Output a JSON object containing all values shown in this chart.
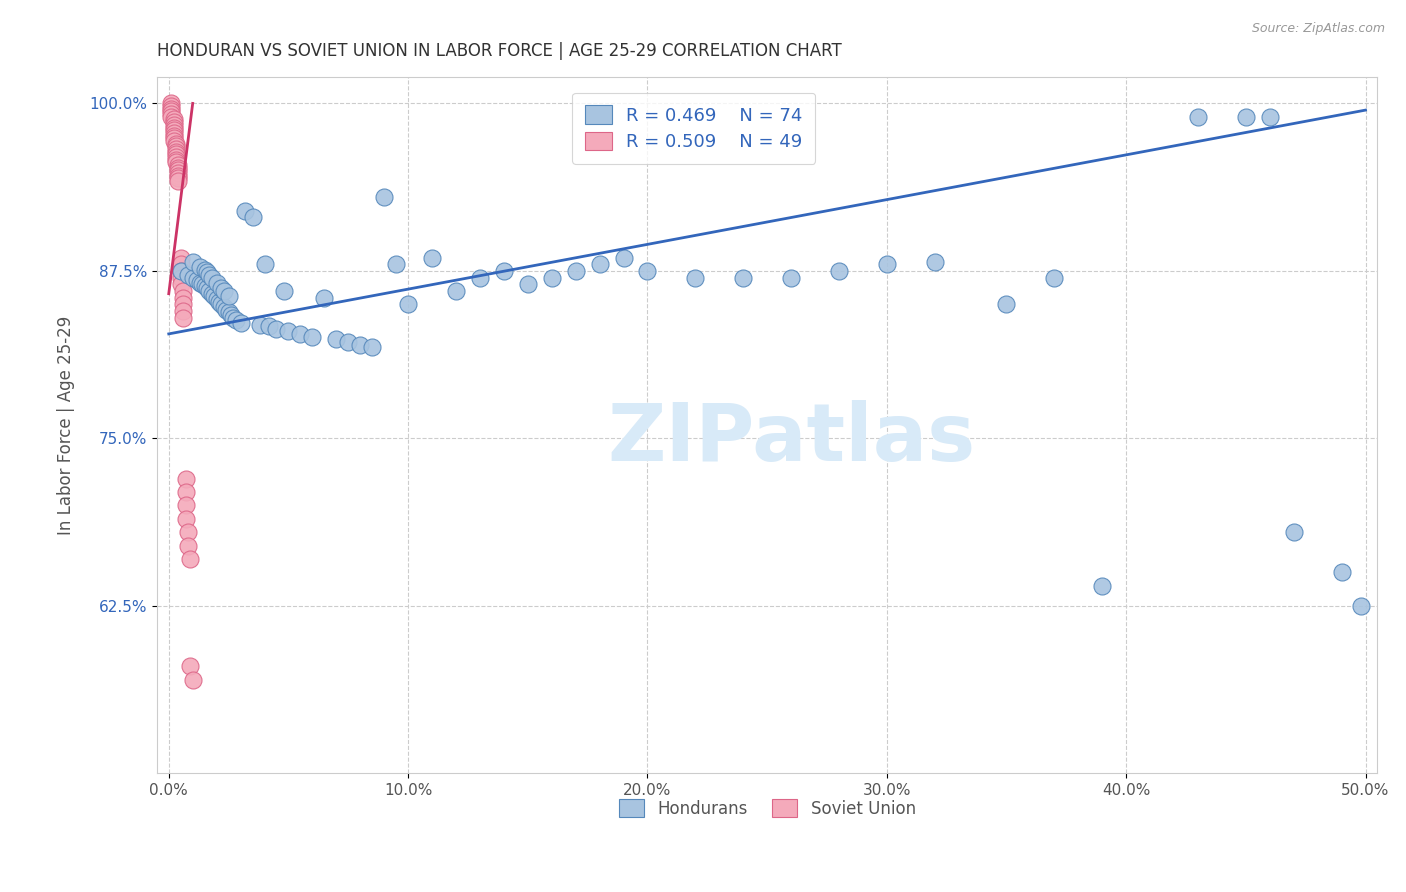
{
  "title": "HONDURAN VS SOVIET UNION IN LABOR FORCE | AGE 25-29 CORRELATION CHART",
  "source": "Source: ZipAtlas.com",
  "ylabel": "In Labor Force | Age 25-29",
  "xlim": [
    -0.005,
    0.505
  ],
  "ylim": [
    0.5,
    1.02
  ],
  "yticks": [
    0.625,
    0.75,
    0.875,
    1.0
  ],
  "ytick_labels": [
    "62.5%",
    "75.0%",
    "87.5%",
    "100.0%"
  ],
  "xticks": [
    0.0,
    0.1,
    0.2,
    0.3,
    0.4,
    0.5
  ],
  "xtick_labels": [
    "0.0%",
    "10.0%",
    "20.0%",
    "30.0%",
    "40.0%",
    "50.0%"
  ],
  "watermark": "ZIPatlas",
  "legend_hondurans": "Hondurans",
  "legend_soviet": "Soviet Union",
  "r_honduran": "R = 0.469",
  "n_honduran": "N = 74",
  "r_soviet": "R = 0.509",
  "n_soviet": "N = 49",
  "blue_color": "#A8C4E0",
  "pink_color": "#F4AABB",
  "blue_edge_color": "#5588BB",
  "pink_edge_color": "#DD6688",
  "blue_line_color": "#3366BB",
  "pink_line_color": "#CC3366",
  "honduran_x": [
    0.005,
    0.008,
    0.01,
    0.01,
    0.012,
    0.013,
    0.013,
    0.014,
    0.015,
    0.015,
    0.016,
    0.016,
    0.017,
    0.017,
    0.018,
    0.018,
    0.019,
    0.02,
    0.02,
    0.021,
    0.022,
    0.022,
    0.023,
    0.023,
    0.024,
    0.025,
    0.025,
    0.026,
    0.027,
    0.028,
    0.03,
    0.032,
    0.035,
    0.038,
    0.04,
    0.042,
    0.045,
    0.048,
    0.05,
    0.055,
    0.06,
    0.065,
    0.07,
    0.075,
    0.08,
    0.085,
    0.09,
    0.095,
    0.1,
    0.11,
    0.12,
    0.13,
    0.14,
    0.15,
    0.16,
    0.17,
    0.18,
    0.19,
    0.2,
    0.22,
    0.24,
    0.26,
    0.28,
    0.3,
    0.32,
    0.35,
    0.37,
    0.39,
    0.43,
    0.45,
    0.46,
    0.47,
    0.49,
    0.498
  ],
  "honduran_y": [
    0.875,
    0.872,
    0.87,
    0.882,
    0.868,
    0.866,
    0.878,
    0.865,
    0.864,
    0.876,
    0.862,
    0.874,
    0.86,
    0.872,
    0.858,
    0.87,
    0.856,
    0.854,
    0.866,
    0.852,
    0.85,
    0.862,
    0.848,
    0.86,
    0.846,
    0.844,
    0.856,
    0.842,
    0.84,
    0.838,
    0.836,
    0.92,
    0.915,
    0.835,
    0.88,
    0.834,
    0.832,
    0.86,
    0.83,
    0.828,
    0.826,
    0.855,
    0.824,
    0.822,
    0.82,
    0.818,
    0.93,
    0.88,
    0.85,
    0.885,
    0.86,
    0.87,
    0.875,
    0.865,
    0.87,
    0.875,
    0.88,
    0.885,
    0.875,
    0.87,
    0.87,
    0.87,
    0.875,
    0.88,
    0.882,
    0.85,
    0.87,
    0.64,
    0.99,
    0.99,
    0.99,
    0.68,
    0.65,
    0.625
  ],
  "soviet_x": [
    0.001,
    0.001,
    0.001,
    0.001,
    0.001,
    0.001,
    0.002,
    0.002,
    0.002,
    0.002,
    0.002,
    0.002,
    0.002,
    0.002,
    0.002,
    0.003,
    0.003,
    0.003,
    0.003,
    0.003,
    0.003,
    0.003,
    0.003,
    0.004,
    0.004,
    0.004,
    0.004,
    0.004,
    0.004,
    0.004,
    0.005,
    0.005,
    0.005,
    0.005,
    0.005,
    0.006,
    0.006,
    0.006,
    0.006,
    0.006,
    0.007,
    0.007,
    0.007,
    0.007,
    0.008,
    0.008,
    0.009,
    0.009,
    0.01
  ],
  "soviet_y": [
    1.0,
    0.998,
    0.996,
    0.994,
    0.992,
    0.99,
    0.988,
    0.986,
    0.984,
    0.982,
    0.98,
    0.978,
    0.976,
    0.974,
    0.972,
    0.97,
    0.968,
    0.966,
    0.964,
    0.962,
    0.96,
    0.958,
    0.956,
    0.954,
    0.952,
    0.95,
    0.948,
    0.946,
    0.944,
    0.942,
    0.885,
    0.88,
    0.875,
    0.87,
    0.865,
    0.86,
    0.855,
    0.85,
    0.845,
    0.84,
    0.72,
    0.71,
    0.7,
    0.69,
    0.68,
    0.67,
    0.66,
    0.58,
    0.57
  ],
  "blue_trend_x": [
    0.0,
    0.5
  ],
  "blue_trend_y": [
    0.828,
    0.995
  ],
  "pink_trend_x": [
    0.0,
    0.01
  ],
  "pink_trend_y": [
    0.858,
    1.0
  ],
  "background_color": "#FFFFFF",
  "grid_color": "#CCCCCC"
}
